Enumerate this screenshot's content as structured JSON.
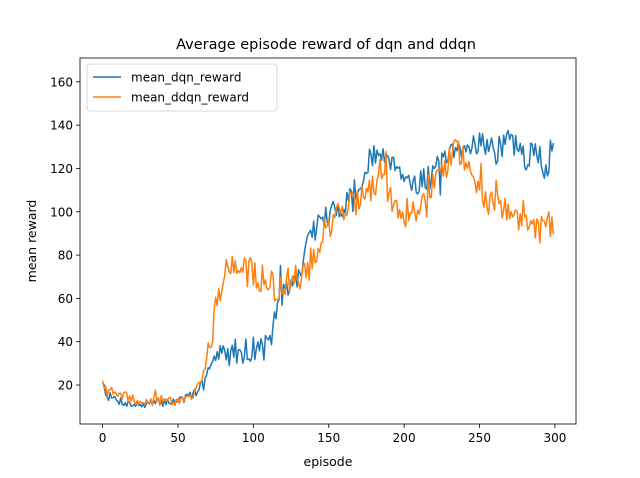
{
  "chart_data": {
    "type": "line",
    "title": "Average episode reward of dqn and ddqn",
    "xlabel": "episode",
    "ylabel": "mean reward",
    "xlim": [
      -15,
      314
    ],
    "ylim": [
      2,
      171
    ],
    "xticks": [
      0,
      50,
      100,
      150,
      200,
      250,
      300
    ],
    "yticks": [
      20,
      40,
      60,
      80,
      100,
      120,
      140,
      160
    ],
    "grid": false,
    "legend_position": "top-left",
    "anchors_x": [
      0,
      3,
      10,
      20,
      30,
      40,
      50,
      55,
      60,
      65,
      70,
      75,
      80,
      85,
      90,
      95,
      100,
      105,
      110,
      112,
      115,
      120,
      125,
      130,
      135,
      140,
      145,
      150,
      155,
      160,
      165,
      170,
      175,
      180,
      185,
      190,
      195,
      200,
      205,
      210,
      215,
      220,
      225,
      230,
      235,
      240,
      245,
      250,
      255,
      260,
      265,
      270,
      275,
      280,
      285,
      290,
      295,
      299
    ],
    "series": [
      {
        "name": "mean_dqn_reward",
        "color": "#1f77b4",
        "anchors_y": [
          22,
          15,
          13,
          11,
          11,
          12,
          13,
          14,
          15,
          20,
          28,
          32,
          34,
          35,
          36,
          36,
          37,
          37,
          38,
          44,
          52,
          62,
          66,
          70,
          82,
          92,
          96,
          98,
          100,
          104,
          108,
          112,
          118,
          125,
          127,
          126,
          122,
          118,
          112,
          114,
          115,
          118,
          122,
          125,
          127,
          128,
          132,
          133,
          131,
          128,
          130,
          135,
          128,
          125,
          126,
          128,
          115,
          130
        ],
        "noise": 6,
        "seed": 7
      },
      {
        "name": "mean_ddqn_reward",
        "color": "#ff7f0e",
        "anchors_y": [
          20,
          17,
          16,
          13,
          12,
          13,
          13,
          14,
          15,
          22,
          35,
          55,
          72,
          74,
          73,
          72,
          72,
          70,
          68,
          66,
          64,
          66,
          68,
          70,
          72,
          80,
          88,
          94,
          100,
          102,
          104,
          106,
          108,
          110,
          112,
          108,
          104,
          102,
          100,
          104,
          110,
          115,
          120,
          124,
          130,
          125,
          118,
          110,
          106,
          104,
          102,
          100,
          98,
          96,
          94,
          92,
          95,
          95
        ],
        "noise": 7,
        "seed": 19
      }
    ]
  }
}
